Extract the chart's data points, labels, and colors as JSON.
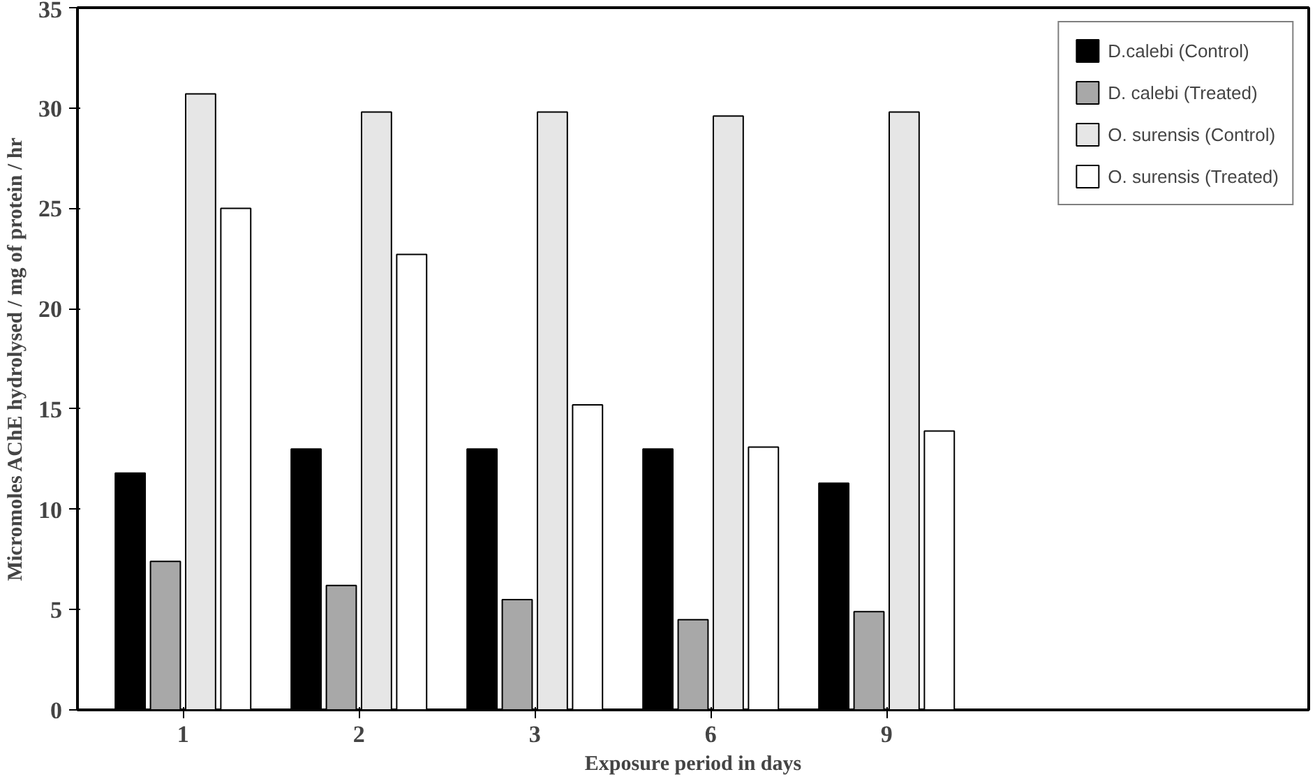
{
  "chart_data": {
    "type": "bar",
    "xlabel": "Exposure period in days",
    "ylabel": "Micromoles AChE hydrolysed / mg of protein / hr",
    "categories": [
      "1",
      "2",
      "3",
      "6",
      "9"
    ],
    "series": [
      {
        "name": "D.calebi (Control)",
        "color": "#000000",
        "values": [
          11.8,
          13,
          13,
          13,
          11.3
        ]
      },
      {
        "name": "D. calebi (Treated)",
        "color": "#a8a8a8",
        "values": [
          7.4,
          6.2,
          5.5,
          4.5,
          4.9
        ]
      },
      {
        "name": "O. surensis (Control)",
        "color": "#e6e6e6",
        "values": [
          30.7,
          29.8,
          29.8,
          29.6,
          29.8
        ]
      },
      {
        "name": "O. surensis (Treated)",
        "color": "#ffffff",
        "values": [
          25,
          22.7,
          15.2,
          13.1,
          13.9
        ]
      }
    ],
    "ylim": [
      0,
      35
    ],
    "yticks": [
      0,
      5,
      10,
      15,
      20,
      25,
      30,
      35
    ],
    "grid": false,
    "legend": "top right"
  }
}
